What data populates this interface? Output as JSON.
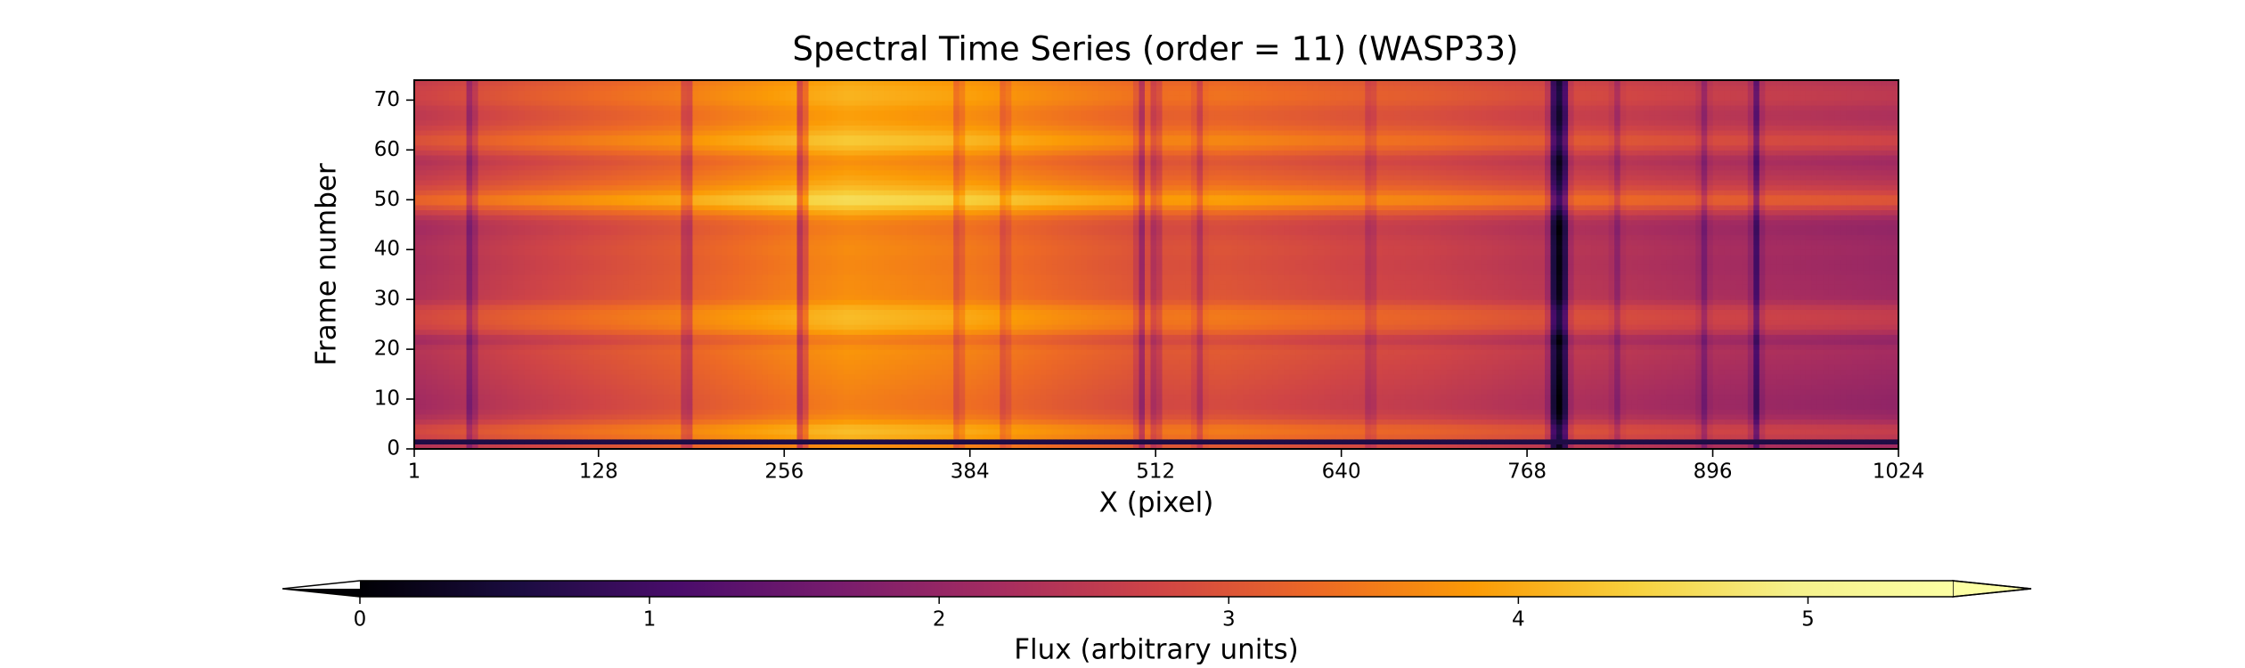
{
  "chart_data": {
    "type": "heatmap",
    "title": "Spectral Time Series (order = 11) (WASP33)",
    "xlabel": "X (pixel)",
    "ylabel": "Frame number",
    "xlim": [
      1,
      1024
    ],
    "ylim": [
      0,
      74
    ],
    "xticks": [
      1,
      128,
      256,
      384,
      512,
      640,
      768,
      896,
      1024
    ],
    "yticks": [
      0,
      10,
      20,
      30,
      40,
      50,
      60,
      70
    ],
    "colormap": "inferno",
    "colorbar": {
      "label": "Flux (arbitrary units)",
      "ticks": [
        0,
        1,
        2,
        3,
        4,
        5
      ],
      "range": [
        0,
        5.5
      ],
      "extend": "both",
      "orientation": "horizontal"
    },
    "column_profile": {
      "x": [
        1,
        40,
        80,
        128,
        180,
        256,
        300,
        384,
        450,
        512,
        560,
        640,
        700,
        768,
        830,
        896,
        950,
        1024
      ],
      "flux": [
        2.55,
        2.75,
        2.95,
        3.15,
        3.35,
        3.75,
        3.95,
        3.75,
        3.45,
        3.2,
        3.25,
        3.05,
        2.95,
        2.75,
        2.65,
        2.5,
        2.45,
        2.35
      ]
    },
    "frame_profile": {
      "frame": [
        0,
        2,
        4,
        6,
        8,
        10,
        12,
        14,
        16,
        18,
        20,
        22,
        24,
        26,
        28,
        30,
        32,
        34,
        36,
        38,
        40,
        42,
        44,
        46,
        48,
        50,
        52,
        54,
        56,
        58,
        60,
        62,
        64,
        66,
        68,
        70,
        72,
        74
      ],
      "offset": [
        -0.3,
        0.1,
        0.3,
        -0.2,
        -0.4,
        -0.4,
        -0.35,
        -0.3,
        -0.25,
        -0.2,
        -0.15,
        -0.45,
        0.1,
        0.25,
        0.2,
        -0.2,
        -0.25,
        -0.25,
        -0.3,
        -0.3,
        -0.25,
        -0.3,
        -0.4,
        -0.3,
        0.2,
        0.75,
        0.3,
        0.05,
        -0.1,
        -0.25,
        0.15,
        0.45,
        0.15,
        -0.05,
        -0.05,
        0.15,
        0.15,
        0.0
      ]
    },
    "low_flux_frames": [
      {
        "frame": 1.5,
        "flux": 0.6
      }
    ],
    "absorption_columns": [
      {
        "x": 40,
        "depth": 0.9
      },
      {
        "x": 189,
        "depth": 1.0
      },
      {
        "x": 268,
        "depth": 1.4
      },
      {
        "x": 376,
        "depth": 0.7
      },
      {
        "x": 408,
        "depth": 0.6
      },
      {
        "x": 502,
        "depth": 1.0
      },
      {
        "x": 512,
        "depth": 0.8
      },
      {
        "x": 542,
        "depth": 0.6
      },
      {
        "x": 660,
        "depth": 0.5
      },
      {
        "x": 786,
        "depth": 1.5
      },
      {
        "x": 790,
        "depth": 1.8
      },
      {
        "x": 794,
        "depth": 1.5
      },
      {
        "x": 830,
        "depth": 0.5
      },
      {
        "x": 890,
        "depth": 0.6
      },
      {
        "x": 926,
        "depth": 1.2
      }
    ]
  }
}
